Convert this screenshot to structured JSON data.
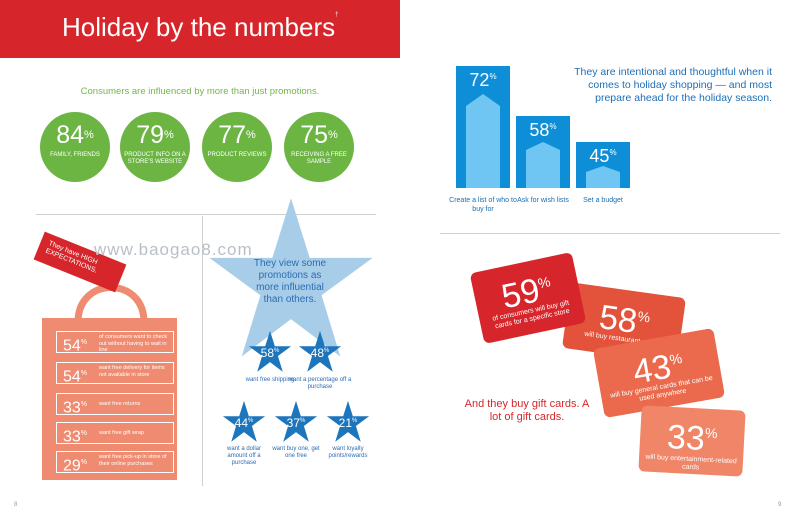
{
  "header": {
    "title": "Holiday by the numbers",
    "title_mark": "†"
  },
  "influence": {
    "subtitle": "Consumers are influenced by more than just promotions.",
    "items": [
      {
        "pct": "84",
        "label": "FAMILY, FRIENDS"
      },
      {
        "pct": "79",
        "label": "PRODUCT INFO ON A STORE'S WEBSITE"
      },
      {
        "pct": "77",
        "label": "PRODUCT REVIEWS"
      },
      {
        "pct": "75",
        "label": "RECEIVING A FREE SAMPLE"
      }
    ]
  },
  "expectations": {
    "tag": "They have HIGH EXPECTATIONS.",
    "rows": [
      {
        "pct": "54",
        "text": "of consumers want to check out without having to wait in line"
      },
      {
        "pct": "54",
        "text": "want free delivery for items not available in store"
      },
      {
        "pct": "33",
        "text": "want free returns"
      },
      {
        "pct": "33",
        "text": "want free gift wrap"
      },
      {
        "pct": "29",
        "text": "want free pick-up in store of their online purchases"
      }
    ]
  },
  "promotions": {
    "headline": "They view some promotions as more influential than others.",
    "stars": [
      {
        "pct": "58",
        "label": "want free shipping"
      },
      {
        "pct": "48",
        "label": "want a percentage off a purchase"
      },
      {
        "pct": "44",
        "label": "want a dollar amount off a purchase"
      },
      {
        "pct": "37",
        "label": "want buy one, get one free"
      },
      {
        "pct": "21",
        "label": "want loyalty points/rewards"
      }
    ]
  },
  "watermark": "www.baogao8.com",
  "planning": {
    "text": "They are intentional and thoughtful when it comes to holiday shopping — and most prepare ahead for the holiday season.",
    "bars": [
      {
        "pct": "72",
        "value": 72,
        "label": "Create a list of who to buy for"
      },
      {
        "pct": "58",
        "value": 58,
        "label": "Ask for wish lists"
      },
      {
        "pct": "45",
        "value": 45,
        "label": "Set a budget"
      }
    ]
  },
  "giftcards": {
    "text": "And they buy gift cards. A lot of gift cards.",
    "cards": [
      {
        "pct": "59",
        "label": "of consumers will buy gift cards for a specific store",
        "color": "#d7262b"
      },
      {
        "pct": "58",
        "label": "will buy restaurant cards",
        "color": "#e3523a"
      },
      {
        "pct": "43",
        "label": "will buy general cards that can be used anywhere",
        "color": "#eb6a4e"
      },
      {
        "pct": "33",
        "label": "will buy entertainment-related cards",
        "color": "#f08567"
      }
    ]
  },
  "pages": {
    "left": "8",
    "right": "9"
  }
}
